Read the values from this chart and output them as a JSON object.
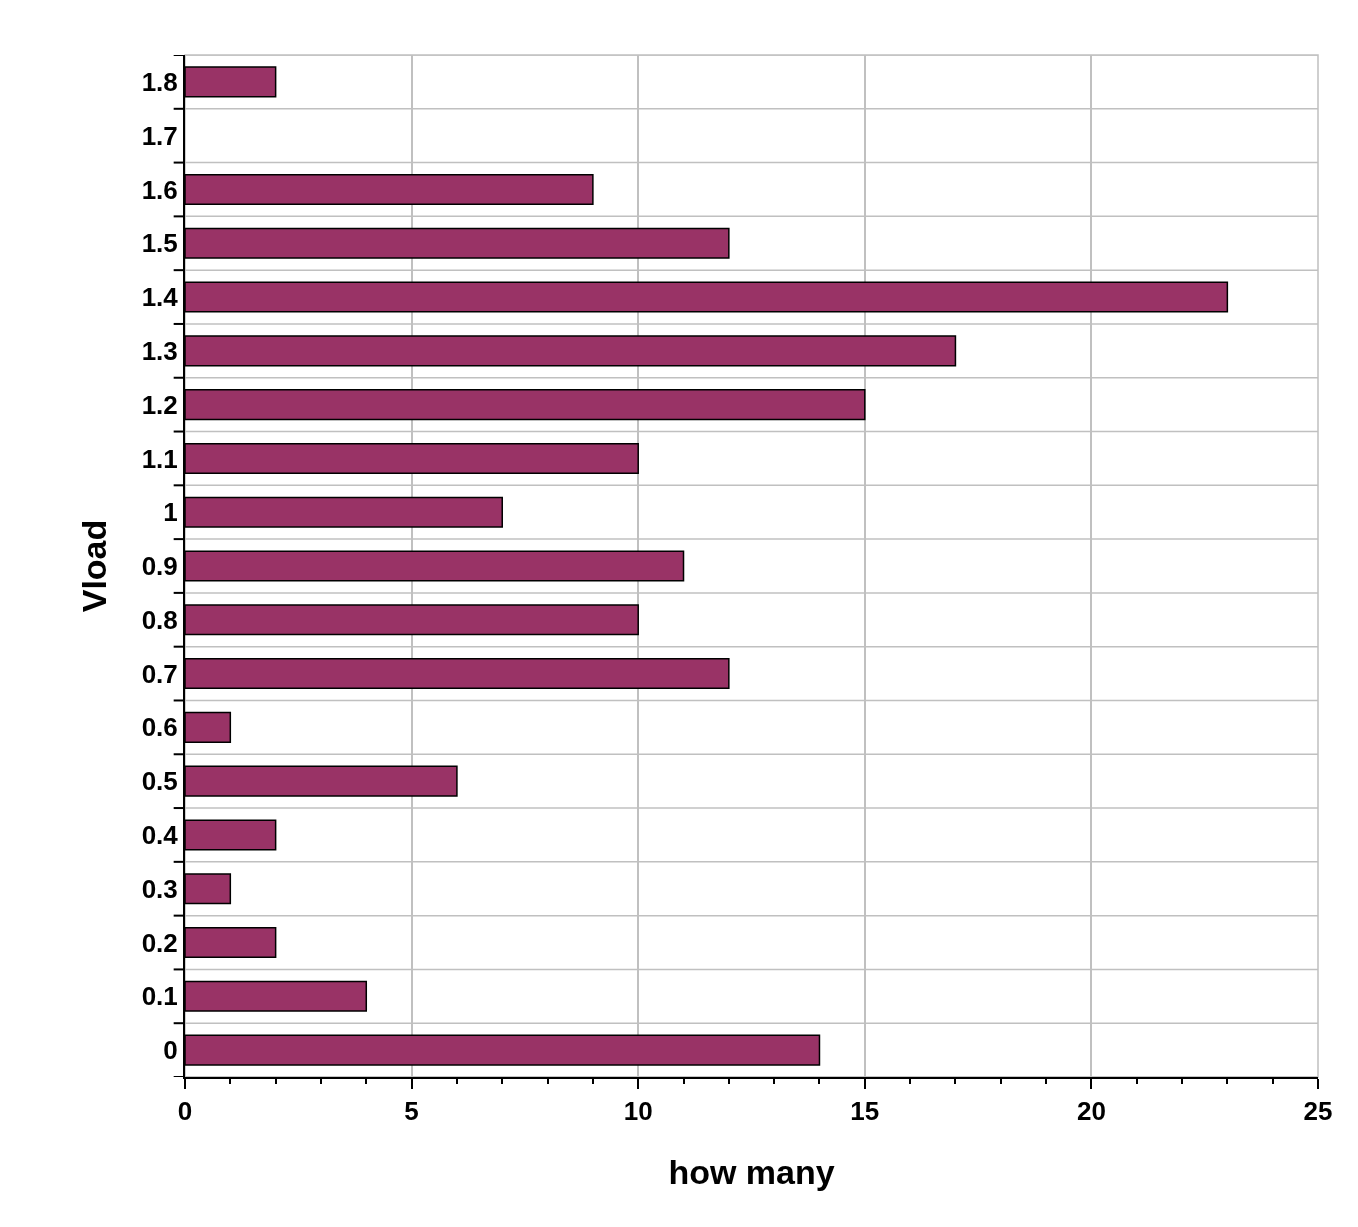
{
  "chart_data": {
    "type": "bar",
    "orientation": "horizontal",
    "xlabel": "how many",
    "ylabel": "Vload",
    "categories": [
      "1.8",
      "1.7",
      "1.6",
      "1.5",
      "1.4",
      "1.3",
      "1.2",
      "1.1",
      "1",
      "0.9",
      "0.8",
      "0.7",
      "0.6",
      "0.5",
      "0.4",
      "0.3",
      "0.2",
      "0.1",
      "0"
    ],
    "values": [
      2,
      null,
      9,
      12,
      23,
      17,
      15,
      10,
      7,
      11,
      10,
      12,
      1,
      6,
      2,
      1,
      2,
      4,
      14
    ],
    "color": "#993366",
    "xlim": [
      0,
      25
    ],
    "xticks": [
      0,
      5,
      10,
      15,
      20,
      25
    ],
    "grid": true
  }
}
